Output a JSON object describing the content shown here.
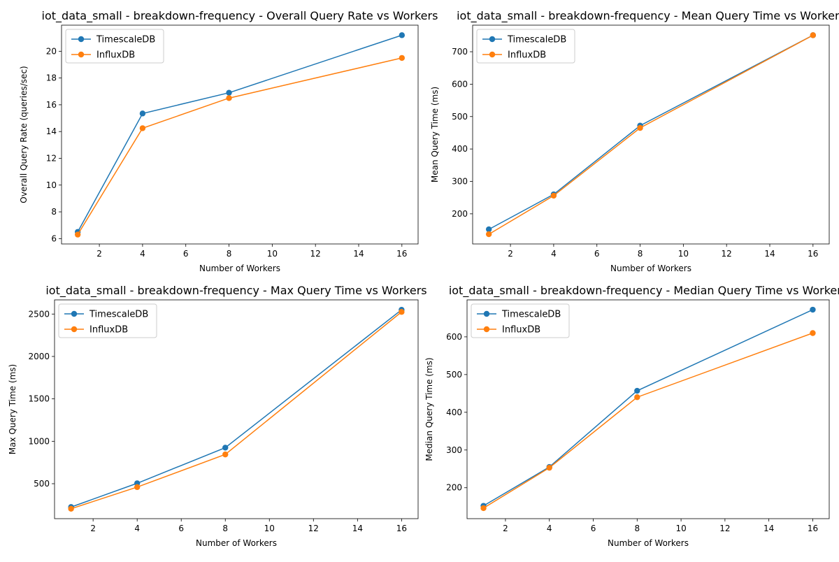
{
  "colors": {
    "timescale": "#1f77b4",
    "influx": "#ff7f0e",
    "axis": "#000000",
    "background": "#ffffff"
  },
  "chart_data": [
    {
      "type": "line",
      "title": "iot_data_small - breakdown-frequency - Overall Query Rate vs Workers",
      "xlabel": "Number of Workers",
      "ylabel": "Overall Query Rate (queries/sec)",
      "x": [
        1,
        4,
        8,
        16
      ],
      "xlim": [
        0.25,
        16.75
      ],
      "ylim": [
        5.6,
        21.95
      ],
      "xticks": [
        2,
        4,
        6,
        8,
        10,
        12,
        14,
        16
      ],
      "yticks": [
        6,
        8,
        10,
        12,
        14,
        16,
        18,
        20
      ],
      "legend": "top-left",
      "grid": false,
      "series": [
        {
          "name": "TimescaleDB",
          "values": [
            6.5,
            15.35,
            16.9,
            21.2
          ]
        },
        {
          "name": "InfluxDB",
          "values": [
            6.3,
            14.25,
            16.5,
            19.5
          ]
        }
      ]
    },
    {
      "type": "line",
      "title": "iot_data_small - breakdown-frequency - Mean Query Time vs Workers",
      "xlabel": "Number of Workers",
      "ylabel": "Mean Query Time (ms)",
      "x": [
        1,
        4,
        8,
        16
      ],
      "xlim": [
        0.25,
        16.75
      ],
      "ylim": [
        107,
        782
      ],
      "xticks": [
        2,
        4,
        6,
        8,
        10,
        12,
        14,
        16
      ],
      "yticks": [
        200,
        300,
        400,
        500,
        600,
        700
      ],
      "legend": "top-left",
      "grid": false,
      "series": [
        {
          "name": "TimescaleDB",
          "values": [
            152,
            260,
            472,
            751
          ]
        },
        {
          "name": "InfluxDB",
          "values": [
            137,
            256,
            465,
            751
          ]
        }
      ]
    },
    {
      "type": "line",
      "title": "iot_data_small - breakdown-frequency - Max Query Time vs Workers",
      "xlabel": "Number of Workers",
      "ylabel": "Max Query Time (ms)",
      "x": [
        1,
        4,
        8,
        16
      ],
      "xlim": [
        0.25,
        16.75
      ],
      "ylim": [
        88,
        2667
      ],
      "xticks": [
        2,
        4,
        6,
        8,
        10,
        12,
        14,
        16
      ],
      "yticks": [
        500,
        1000,
        1500,
        2000,
        2500
      ],
      "legend": "top-left",
      "grid": false,
      "series": [
        {
          "name": "TimescaleDB",
          "values": [
            225,
            505,
            925,
            2550
          ]
        },
        {
          "name": "InfluxDB",
          "values": [
            205,
            460,
            845,
            2525
          ]
        }
      ]
    },
    {
      "type": "line",
      "title": "iot_data_small - breakdown-frequency - Median Query Time vs Workers",
      "xlabel": "Number of Workers",
      "ylabel": "Median Query Time (ms)",
      "x": [
        1,
        4,
        8,
        16
      ],
      "xlim": [
        0.25,
        16.75
      ],
      "ylim": [
        118,
        698
      ],
      "xticks": [
        2,
        4,
        6,
        8,
        10,
        12,
        14,
        16
      ],
      "yticks": [
        200,
        300,
        400,
        500,
        600
      ],
      "legend": "top-left",
      "grid": false,
      "series": [
        {
          "name": "TimescaleDB",
          "values": [
            152,
            255,
            457,
            672
          ]
        },
        {
          "name": "InfluxDB",
          "values": [
            146,
            253,
            440,
            610
          ]
        }
      ]
    }
  ]
}
